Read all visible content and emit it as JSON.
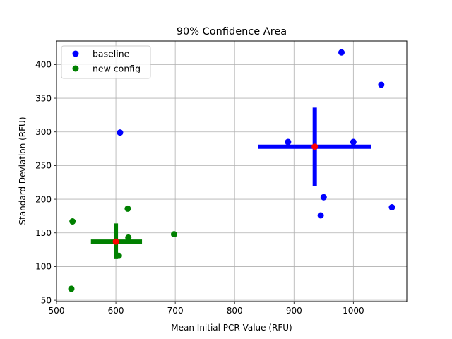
{
  "chart_data": {
    "type": "scatter",
    "title": "90% Confidence Area",
    "xlabel": "Mean Initial PCR Value (RFU)",
    "ylabel": "Standard Deviation (RFU)",
    "xlim": [
      500,
      1090
    ],
    "ylim": [
      48,
      435
    ],
    "xticks": [
      500,
      600,
      700,
      800,
      900,
      1000
    ],
    "yticks": [
      50,
      100,
      150,
      200,
      250,
      300,
      350,
      400
    ],
    "grid": true,
    "legend_position": "top-left",
    "series": [
      {
        "name": "baseline",
        "color": "#0000ff",
        "points": [
          {
            "x": 980,
            "y": 418
          },
          {
            "x": 1047,
            "y": 370
          },
          {
            "x": 607,
            "y": 299
          },
          {
            "x": 890,
            "y": 285
          },
          {
            "x": 1000,
            "y": 285
          },
          {
            "x": 950,
            "y": 203
          },
          {
            "x": 1065,
            "y": 188
          },
          {
            "x": 945,
            "y": 176
          }
        ],
        "mean": {
          "x": 935,
          "y": 278
        },
        "x_interval": [
          840,
          1030
        ],
        "y_interval": [
          220,
          336
        ]
      },
      {
        "name": "new config",
        "color": "#008000",
        "points": [
          {
            "x": 620,
            "y": 186
          },
          {
            "x": 527,
            "y": 167
          },
          {
            "x": 698,
            "y": 148
          },
          {
            "x": 621,
            "y": 143
          },
          {
            "x": 605,
            "y": 116
          },
          {
            "x": 525,
            "y": 67
          }
        ],
        "mean": {
          "x": 600,
          "y": 137
        },
        "x_interval": [
          558,
          644
        ],
        "y_interval": [
          111,
          164
        ]
      }
    ],
    "mean_color": "#ff0000"
  }
}
